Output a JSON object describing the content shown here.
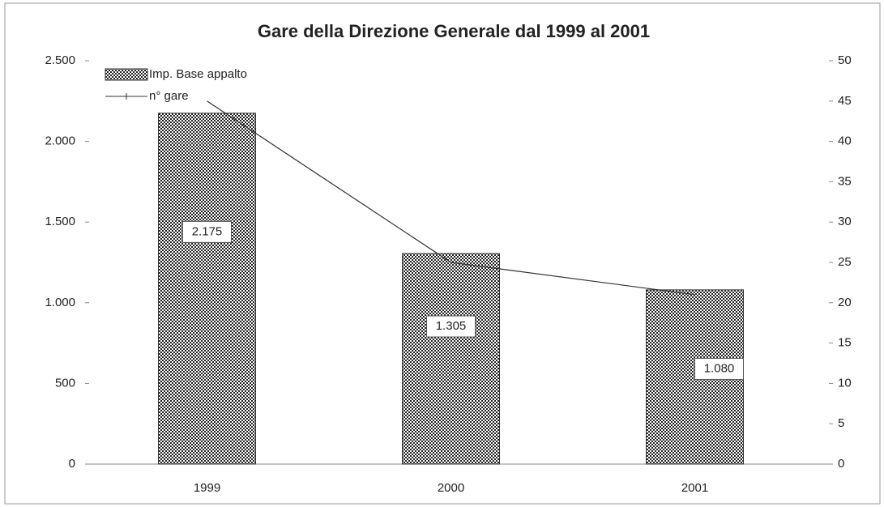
{
  "chart_data": {
    "type": "bar",
    "title": "Gare della Direzione Generale dal 1999 al 2001",
    "categories": [
      "1999",
      "2000",
      "2001"
    ],
    "series": [
      {
        "name": "Imp. Base appalto",
        "type": "bar",
        "color": "#333333",
        "values": [
          2175,
          1305,
          1080
        ],
        "value_labels": [
          "2.175",
          "1.305",
          "1.080"
        ]
      },
      {
        "name": "n° gare",
        "type": "line",
        "axis": "y2",
        "color": "#333333",
        "values": [
          45,
          25,
          21
        ]
      }
    ],
    "ylim": [
      0,
      2500
    ],
    "yticks": [
      0,
      500,
      {
        "value": 1000,
        "label": "1.000"
      },
      {
        "value": 1500,
        "label": "1.500"
      },
      {
        "value": 2000,
        "label": "2.000"
      },
      {
        "value": 2500,
        "label": "2.500"
      }
    ],
    "y2lim": [
      0,
      50
    ],
    "y2ticks": [
      0,
      5,
      10,
      15,
      20,
      25,
      30,
      35,
      40,
      45,
      50
    ],
    "legend": "top-left"
  }
}
